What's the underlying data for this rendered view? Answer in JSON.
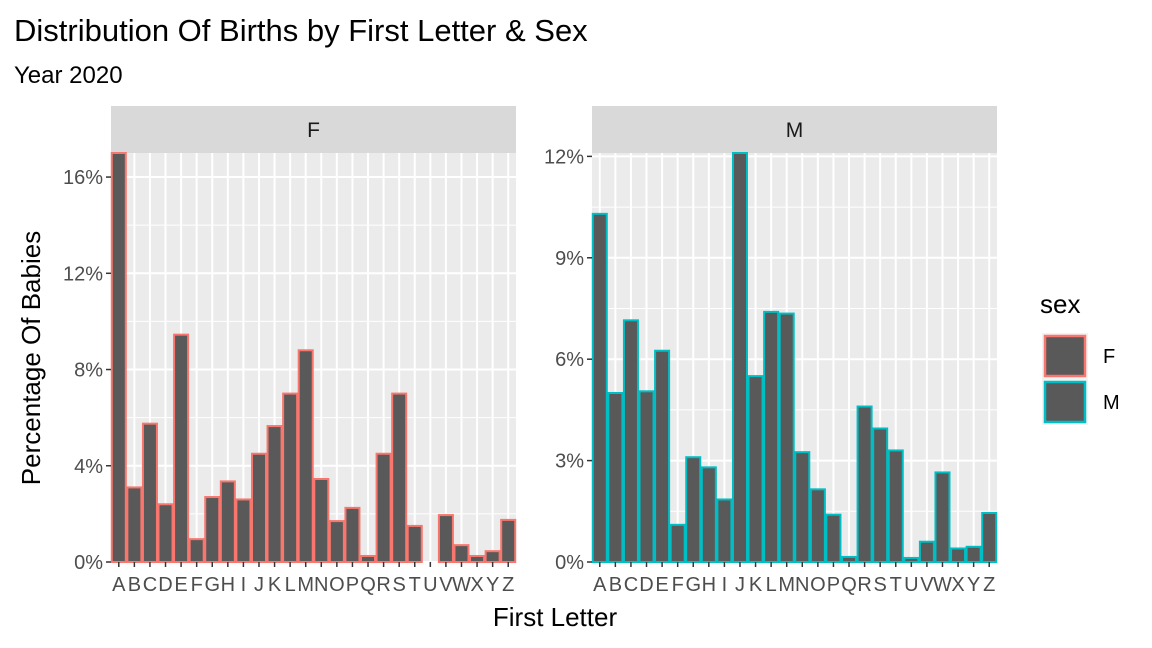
{
  "title": "Distribution Of Births by First Letter & Sex",
  "subtitle": "Year 2020",
  "chart_data": {
    "type": "bar",
    "xlabel": "First Letter",
    "ylabel": "Percentage Of Babies",
    "categories": [
      "A",
      "B",
      "C",
      "D",
      "E",
      "F",
      "G",
      "H",
      "I",
      "J",
      "K",
      "L",
      "M",
      "N",
      "O",
      "P",
      "Q",
      "R",
      "S",
      "T",
      "U",
      "V",
      "W",
      "X",
      "Y",
      "Z"
    ],
    "fill_color": "#595959",
    "grid": true,
    "legend": {
      "title": "sex",
      "position": "right",
      "entries": [
        {
          "label": "F",
          "color": "#F8766D"
        },
        {
          "label": "M",
          "color": "#00BFC4"
        }
      ]
    },
    "panels": [
      {
        "strip": "F",
        "outline": "#F8766D",
        "ylim": [
          0,
          17.0
        ],
        "yticks": [
          0,
          4,
          8,
          12,
          16
        ],
        "yticklabels": [
          "0%",
          "4%",
          "8%",
          "12%",
          "16%"
        ],
        "values": [
          17.0,
          3.1,
          5.75,
          2.4,
          9.45,
          0.95,
          2.7,
          3.35,
          2.6,
          4.5,
          5.65,
          7.0,
          8.8,
          3.45,
          1.7,
          2.25,
          0.25,
          4.5,
          7.0,
          1.5,
          0.0,
          1.95,
          0.7,
          0.25,
          0.45,
          1.75
        ]
      },
      {
        "strip": "M",
        "outline": "#00BFC4",
        "ylim": [
          0,
          12.1
        ],
        "yticks": [
          0,
          3,
          6,
          9,
          12
        ],
        "yticklabels": [
          "0%",
          "3%",
          "6%",
          "9%",
          "12%"
        ],
        "values": [
          10.3,
          5.0,
          7.15,
          5.05,
          6.25,
          1.1,
          3.1,
          2.8,
          1.85,
          12.1,
          5.5,
          7.4,
          7.35,
          3.25,
          2.15,
          1.4,
          0.15,
          4.6,
          3.95,
          3.3,
          0.12,
          0.6,
          2.65,
          0.4,
          0.45,
          1.45
        ]
      }
    ]
  }
}
